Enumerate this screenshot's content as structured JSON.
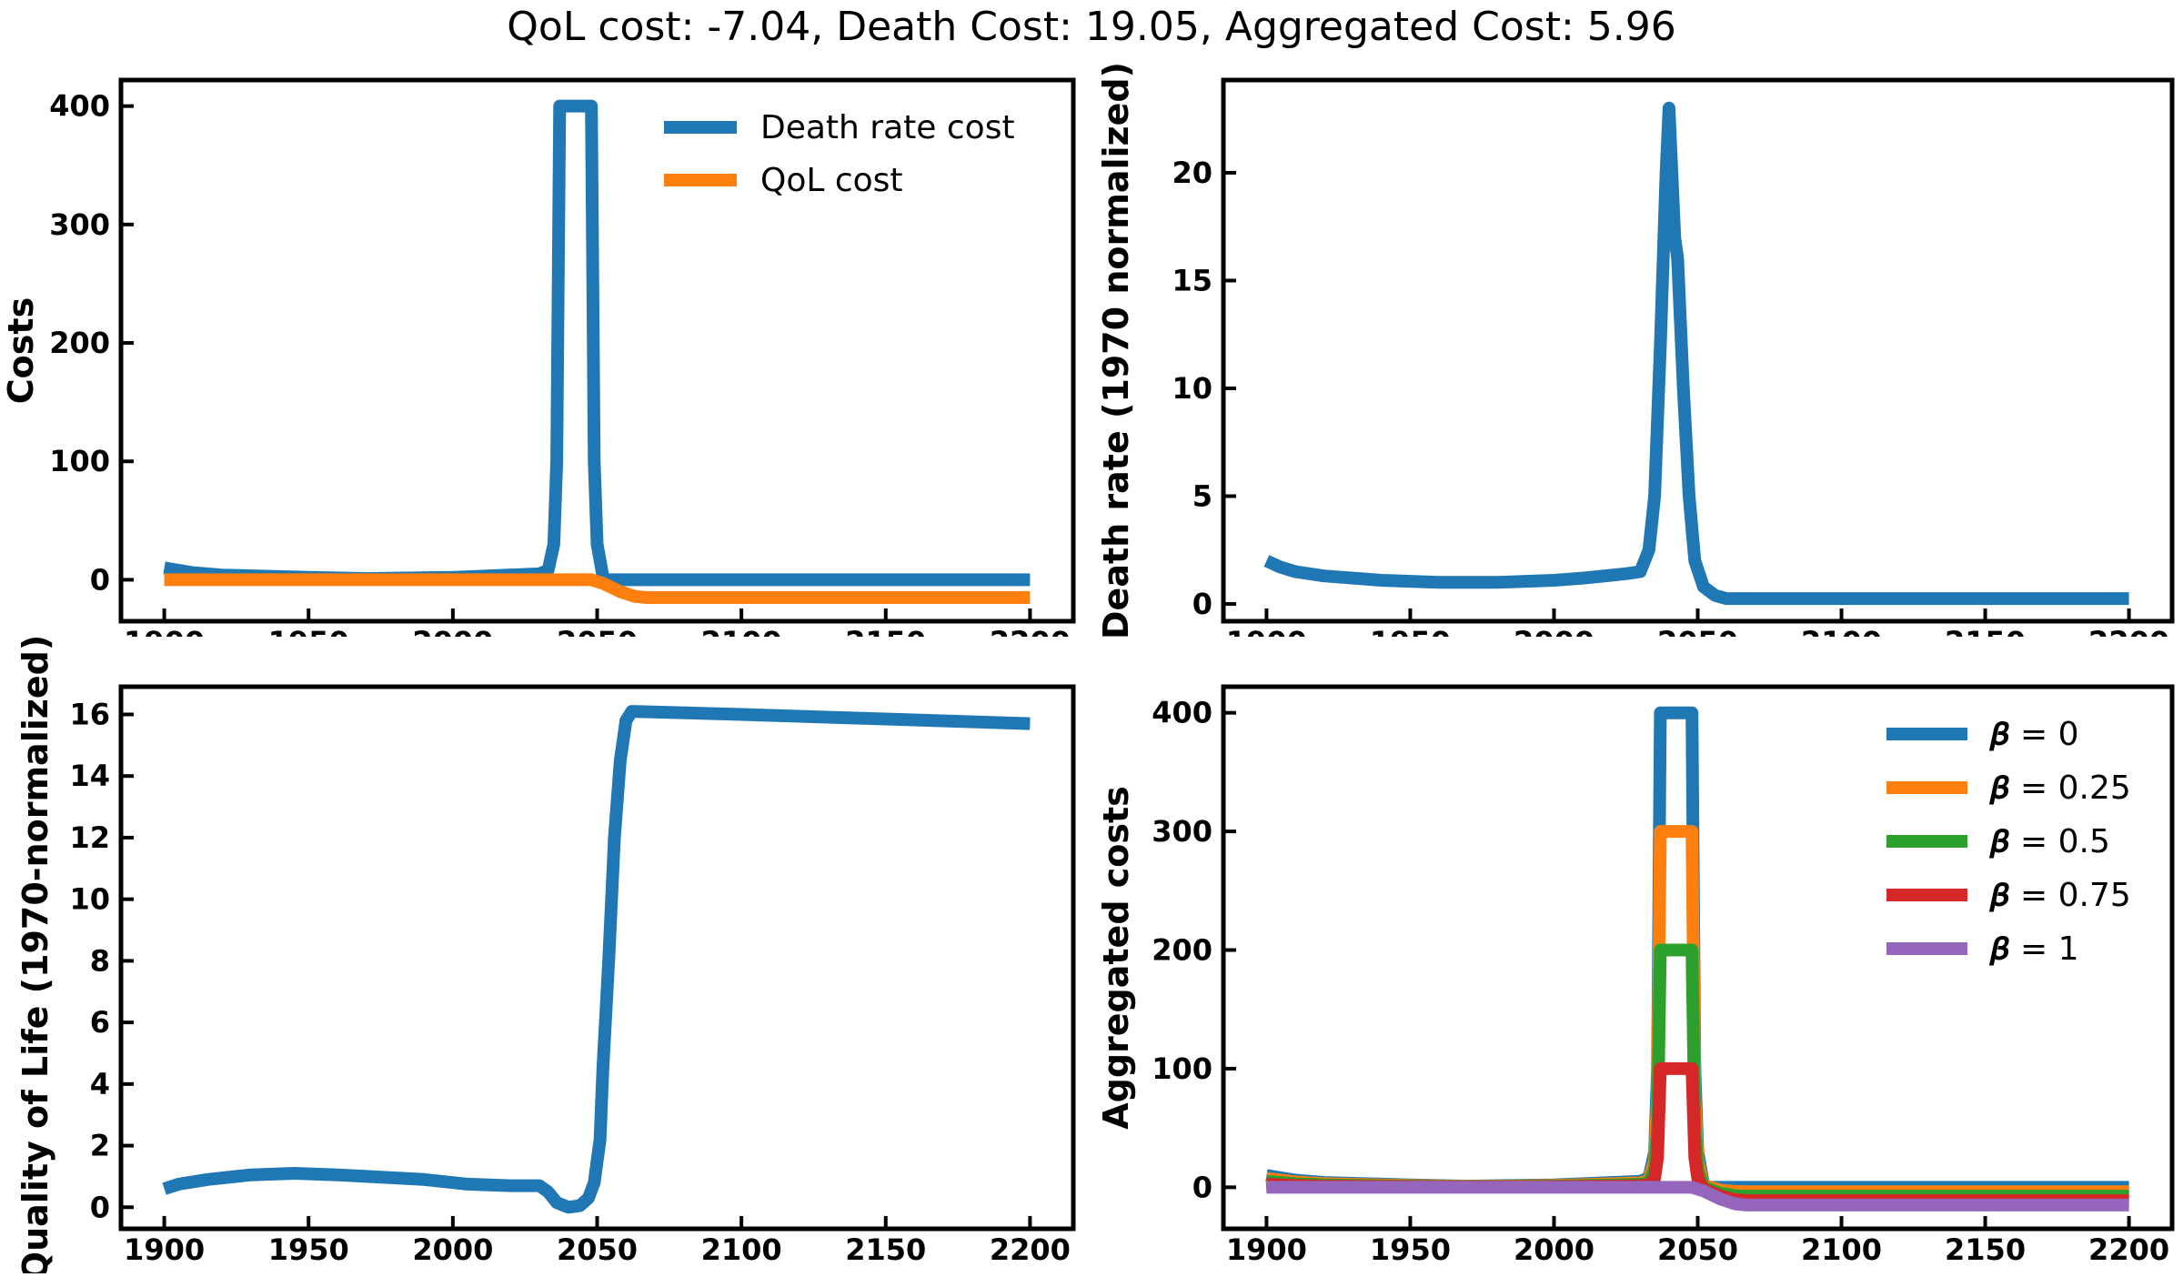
{
  "figure": {
    "title": "QoL cost: -7.04, Death Cost: 19.05, Aggregated Cost: 5.96"
  },
  "colors": {
    "blue": "#1f77b4",
    "orange": "#ff7f0e",
    "green": "#2ca02c",
    "red": "#d62728",
    "purple": "#9467bd"
  },
  "chart_data": [
    {
      "id": "costs",
      "type": "line",
      "ylabel": "Costs",
      "xlim": [
        1885,
        2215
      ],
      "ylim": [
        -35,
        422
      ],
      "xticks": [
        1900,
        1950,
        2000,
        2050,
        2100,
        2150,
        2200
      ],
      "yticks": [
        0,
        100,
        200,
        300,
        400
      ],
      "legend": "top-right",
      "series": [
        {
          "name": "Death rate cost",
          "color": "#1f77b4",
          "points": [
            [
              1900,
              10
            ],
            [
              1905,
              8
            ],
            [
              1910,
              6
            ],
            [
              1920,
              4
            ],
            [
              1950,
              2
            ],
            [
              1970,
              1
            ],
            [
              2000,
              2
            ],
            [
              2030,
              5
            ],
            [
              2033,
              8
            ],
            [
              2035,
              30
            ],
            [
              2036,
              100
            ],
            [
              2037,
              400
            ],
            [
              2048,
              400
            ],
            [
              2049,
              100
            ],
            [
              2050,
              30
            ],
            [
              2052,
              3
            ],
            [
              2053,
              0
            ],
            [
              2200,
              0
            ]
          ]
        },
        {
          "name": "QoL cost",
          "color": "#ff7f0e",
          "points": [
            [
              1900,
              0
            ],
            [
              1950,
              0
            ],
            [
              2000,
              0
            ],
            [
              2035,
              0
            ],
            [
              2048,
              0
            ],
            [
              2052,
              -3
            ],
            [
              2058,
              -10
            ],
            [
              2063,
              -14
            ],
            [
              2067,
              -15
            ],
            [
              2100,
              -15
            ],
            [
              2200,
              -15
            ]
          ]
        }
      ]
    },
    {
      "id": "death-rate",
      "type": "line",
      "ylabel": "Death rate (1970 normalized)",
      "xlim": [
        1885,
        2215
      ],
      "ylim": [
        -0.8,
        24.3
      ],
      "xticks": [
        1900,
        1950,
        2000,
        2050,
        2100,
        2150,
        2200
      ],
      "yticks": [
        0,
        5,
        10,
        15,
        20
      ],
      "series": [
        {
          "name": "",
          "color": "#1f77b4",
          "points": [
            [
              1900,
              2.0
            ],
            [
              1905,
              1.7
            ],
            [
              1910,
              1.5
            ],
            [
              1920,
              1.3
            ],
            [
              1940,
              1.1
            ],
            [
              1960,
              1.0
            ],
            [
              1970,
              1.0
            ],
            [
              1980,
              1.0
            ],
            [
              2000,
              1.1
            ],
            [
              2010,
              1.2
            ],
            [
              2025,
              1.4
            ],
            [
              2030,
              1.5
            ],
            [
              2033,
              2.5
            ],
            [
              2035,
              5
            ],
            [
              2037,
              12
            ],
            [
              2039,
              20
            ],
            [
              2040,
              23
            ],
            [
              2041,
              20
            ],
            [
              2042,
              17
            ],
            [
              2043,
              16
            ],
            [
              2045,
              10
            ],
            [
              2047,
              5
            ],
            [
              2049,
              2
            ],
            [
              2052,
              0.8
            ],
            [
              2056,
              0.4
            ],
            [
              2060,
              0.25
            ],
            [
              2100,
              0.25
            ],
            [
              2200,
              0.25
            ]
          ]
        }
      ]
    },
    {
      "id": "quality-of-life",
      "type": "line",
      "ylabel": "Quality of Life (1970-normalized)",
      "xlim": [
        1885,
        2215
      ],
      "ylim": [
        -0.7,
        16.9
      ],
      "xticks": [
        1900,
        1950,
        2000,
        2050,
        2100,
        2150,
        2200
      ],
      "yticks": [
        0,
        2,
        4,
        6,
        8,
        10,
        12,
        14,
        16
      ],
      "series": [
        {
          "name": "",
          "color": "#1f77b4",
          "points": [
            [
              1900,
              0.6
            ],
            [
              1905,
              0.75
            ],
            [
              1915,
              0.9
            ],
            [
              1930,
              1.05
            ],
            [
              1945,
              1.1
            ],
            [
              1960,
              1.05
            ],
            [
              1970,
              1.0
            ],
            [
              1990,
              0.9
            ],
            [
              2005,
              0.75
            ],
            [
              2020,
              0.7
            ],
            [
              2030,
              0.7
            ],
            [
              2033,
              0.5
            ],
            [
              2036,
              0.15
            ],
            [
              2040,
              0.0
            ],
            [
              2044,
              0.05
            ],
            [
              2047,
              0.3
            ],
            [
              2049,
              0.8
            ],
            [
              2051,
              2.2
            ],
            [
              2052,
              4.5
            ],
            [
              2054,
              8
            ],
            [
              2056,
              12
            ],
            [
              2058,
              14.5
            ],
            [
              2060,
              15.8
            ],
            [
              2062,
              16.1
            ],
            [
              2100,
              16.0
            ],
            [
              2200,
              15.7
            ]
          ]
        }
      ]
    },
    {
      "id": "aggregated",
      "type": "line",
      "ylabel": "Aggregated costs",
      "xlim": [
        1885,
        2215
      ],
      "ylim": [
        -35,
        422
      ],
      "xticks": [
        1900,
        1950,
        2000,
        2050,
        2100,
        2150,
        2200
      ],
      "yticks": [
        0,
        100,
        200,
        300,
        400
      ],
      "legend": "top-right",
      "series": [
        {
          "name": "𝜷 = 0",
          "color": "#1f77b4",
          "points": [
            [
              1900,
              10
            ],
            [
              1905,
              8
            ],
            [
              1910,
              6
            ],
            [
              1920,
              4
            ],
            [
              1950,
              2
            ],
            [
              1970,
              1
            ],
            [
              2000,
              2
            ],
            [
              2030,
              5
            ],
            [
              2033,
              8
            ],
            [
              2035,
              30
            ],
            [
              2036,
              100
            ],
            [
              2037,
              400
            ],
            [
              2048,
              400
            ],
            [
              2049,
              100
            ],
            [
              2050,
              30
            ],
            [
              2052,
              3
            ],
            [
              2053,
              0
            ],
            [
              2200,
              0
            ]
          ]
        },
        {
          "name": "𝜷 = 0.25",
          "color": "#ff7f0e",
          "points": [
            [
              1900,
              7.5
            ],
            [
              1905,
              6
            ],
            [
              1910,
              4.5
            ],
            [
              1920,
              3
            ],
            [
              1950,
              1.5
            ],
            [
              1970,
              0.75
            ],
            [
              2000,
              1.5
            ],
            [
              2030,
              3.75
            ],
            [
              2033,
              6
            ],
            [
              2035,
              22.5
            ],
            [
              2036,
              75
            ],
            [
              2037,
              300
            ],
            [
              2048,
              300
            ],
            [
              2049,
              75
            ],
            [
              2050,
              22.5
            ],
            [
              2052,
              1.5
            ],
            [
              2058,
              -2.5
            ],
            [
              2063,
              -3.5
            ],
            [
              2067,
              -3.75
            ],
            [
              2200,
              -3.75
            ]
          ]
        },
        {
          "name": "𝜷 = 0.5",
          "color": "#2ca02c",
          "points": [
            [
              1900,
              5
            ],
            [
              1905,
              4
            ],
            [
              1910,
              3
            ],
            [
              1920,
              2
            ],
            [
              1950,
              1
            ],
            [
              1970,
              0.5
            ],
            [
              2000,
              1
            ],
            [
              2030,
              2.5
            ],
            [
              2033,
              4
            ],
            [
              2035,
              15
            ],
            [
              2036,
              50
            ],
            [
              2037,
              200
            ],
            [
              2048,
              200
            ],
            [
              2049,
              50
            ],
            [
              2050,
              15
            ],
            [
              2052,
              0
            ],
            [
              2058,
              -5
            ],
            [
              2063,
              -7
            ],
            [
              2067,
              -7.5
            ],
            [
              2200,
              -7.5
            ]
          ]
        },
        {
          "name": "𝜷 = 0.75",
          "color": "#d62728",
          "points": [
            [
              1900,
              2.5
            ],
            [
              1905,
              2
            ],
            [
              1910,
              1.5
            ],
            [
              1920,
              1
            ],
            [
              1950,
              0.5
            ],
            [
              1970,
              0.25
            ],
            [
              2000,
              0.5
            ],
            [
              2030,
              1.25
            ],
            [
              2033,
              2
            ],
            [
              2035,
              7.5
            ],
            [
              2036,
              25
            ],
            [
              2037,
              100
            ],
            [
              2048,
              100
            ],
            [
              2049,
              25
            ],
            [
              2050,
              7.5
            ],
            [
              2052,
              -1.5
            ],
            [
              2058,
              -7.5
            ],
            [
              2063,
              -10.5
            ],
            [
              2067,
              -11.25
            ],
            [
              2200,
              -11.25
            ]
          ]
        },
        {
          "name": "𝜷 = 1",
          "color": "#9467bd",
          "points": [
            [
              1900,
              0
            ],
            [
              1950,
              0
            ],
            [
              2000,
              0
            ],
            [
              2035,
              0
            ],
            [
              2048,
              0
            ],
            [
              2052,
              -3
            ],
            [
              2058,
              -10
            ],
            [
              2063,
              -14
            ],
            [
              2067,
              -15
            ],
            [
              2100,
              -15
            ],
            [
              2200,
              -15
            ]
          ]
        }
      ]
    }
  ]
}
